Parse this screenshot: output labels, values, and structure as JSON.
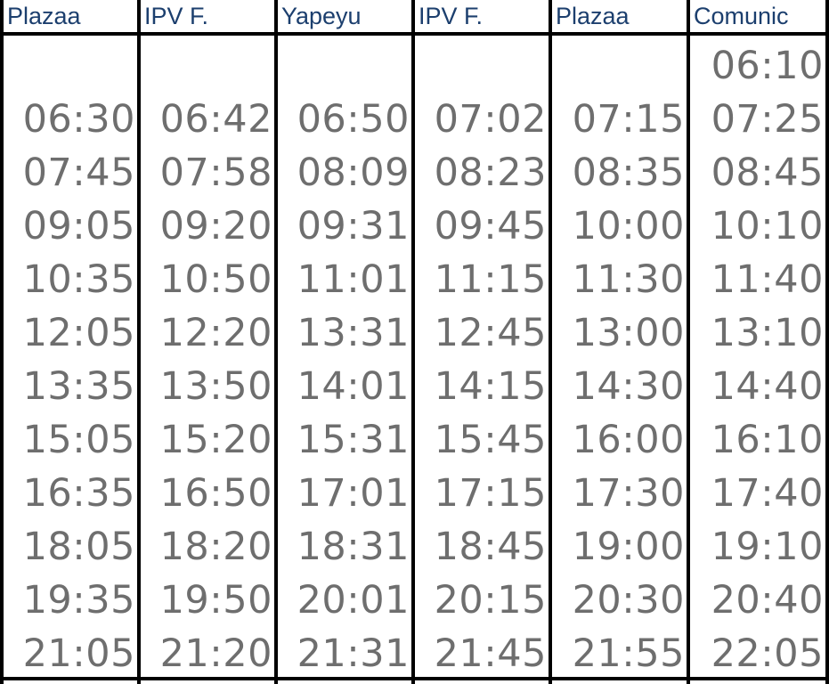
{
  "columns": [
    {
      "header": "Plazaa",
      "first_time": "",
      "times": [
        "06:30",
        "07:45",
        "09:05",
        "10:35",
        "12:05",
        "13:35",
        "15:05",
        "16:35",
        "18:05",
        "19:35",
        "21:05"
      ]
    },
    {
      "header": "IPV F.",
      "first_time": "",
      "times": [
        "06:42",
        "07:58",
        "09:20",
        "10:50",
        "12:20",
        "13:50",
        "15:20",
        "16:50",
        "18:20",
        "19:50",
        "21:20"
      ]
    },
    {
      "header": "Yapeyu",
      "first_time": "",
      "times": [
        "06:50",
        "08:09",
        "09:31",
        "11:01",
        "13:31",
        "14:01",
        "15:31",
        "17:01",
        "18:31",
        "20:01",
        "21:31"
      ]
    },
    {
      "header": "IPV F.",
      "first_time": "",
      "times": [
        "07:02",
        "08:23",
        "09:45",
        "11:15",
        "12:45",
        "14:15",
        "15:45",
        "17:15",
        "18:45",
        "20:15",
        "21:45"
      ]
    },
    {
      "header": "Plazaa",
      "first_time": "",
      "times": [
        "07:15",
        "08:35",
        "10:00",
        "11:30",
        "13:00",
        "14:30",
        "16:00",
        "17:30",
        "19:00",
        "20:30",
        "21:55"
      ]
    },
    {
      "header": "Comunic",
      "first_time": "06:10",
      "times": [
        "07:25",
        "08:45",
        "10:10",
        "11:40",
        "13:10",
        "14:40",
        "16:10",
        "17:40",
        "19:10",
        "20:40",
        "22:05"
      ]
    }
  ]
}
